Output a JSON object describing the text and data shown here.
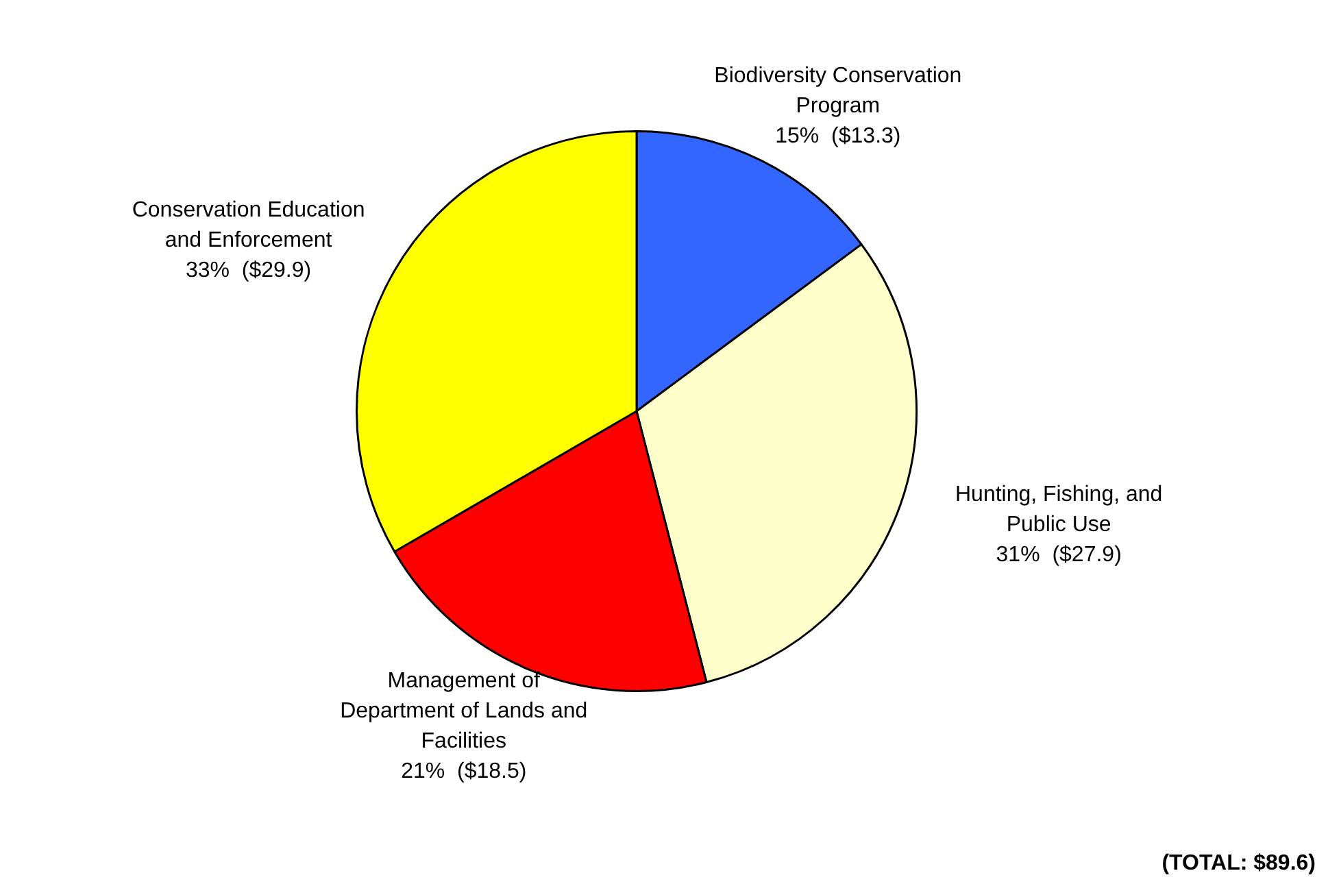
{
  "chart_data": {
    "type": "pie",
    "categories": [
      "Biodiversity Conservation Program",
      "Hunting, Fishing, and Public Use",
      "Management of Department of Lands and Facilities",
      "Conservation Education and Enforcement"
    ],
    "values": [
      13.3,
      27.9,
      18.5,
      29.9
    ],
    "value_labels": [
      "15%  ($13.3)",
      "31%  ($27.9)",
      "21%  ($18.5)",
      "33%  ($29.9)"
    ],
    "colors": [
      "#3366ff",
      "#ffffcc",
      "#ff0000",
      "#ffff00"
    ],
    "legend": false,
    "annotations": [
      "(TOTAL: $89.6)"
    ]
  }
}
